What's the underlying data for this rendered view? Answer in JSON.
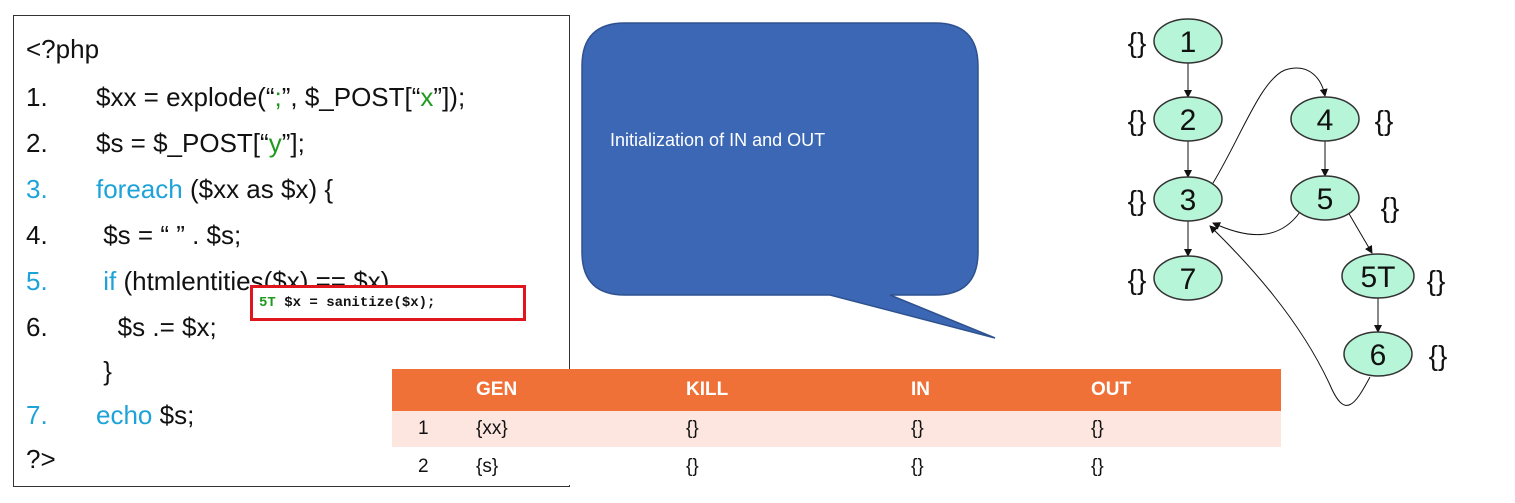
{
  "code": {
    "open_tag": "<?php",
    "lines": [
      {
        "num": "1.",
        "pre": "$xx = explode(“",
        "str": ";",
        "mid": "”, $_POST[“",
        "str2": "x",
        "post": "”]);"
      },
      {
        "num": "2.",
        "pre": "$s = $_POST[“",
        "str": "y",
        "post": "”];"
      },
      {
        "num": "3.",
        "kw": "foreach",
        "rest": " ($xx as $x) {"
      },
      {
        "num": "4.",
        "text": " $s = “ ” . $s;"
      },
      {
        "num": "5.",
        "kw": " if",
        "rest": " (htmlentities($x) == $x)"
      },
      {
        "num": "6.",
        "text": "   $s .= $x;"
      },
      {
        "num": "",
        "text": " }"
      },
      {
        "num": "7.",
        "kw": "echo",
        "rest": " $s;"
      }
    ],
    "close_tag": "?>",
    "patch_id": "5T",
    "patch_code": " $x = sanitize($x);"
  },
  "callout": {
    "text": "Initialization of IN and OUT"
  },
  "graph": {
    "nodes": [
      {
        "id": "1",
        "set": "{}"
      },
      {
        "id": "2",
        "set": "{}"
      },
      {
        "id": "3",
        "set": "{}"
      },
      {
        "id": "7",
        "set": "{}"
      },
      {
        "id": "4",
        "set": "{}"
      },
      {
        "id": "5",
        "set": "{}"
      },
      {
        "id": "5T",
        "set": "{}"
      },
      {
        "id": "6",
        "set": "{}"
      }
    ]
  },
  "table": {
    "headers": [
      "",
      "GEN",
      "KILL",
      "IN",
      "OUT"
    ],
    "rows": [
      [
        "1",
        "{xx}",
        "{}",
        "{}",
        "{}"
      ],
      [
        "2",
        "{s}",
        "{}",
        "{}",
        "{}"
      ]
    ]
  },
  "colors": {
    "node_fill": "#b6f5d8",
    "callout_fill": "#3b67b5",
    "table_header": "#f07138",
    "keyword": "#1ea3d8",
    "string": "#1f9a1f",
    "patch_border": "#e0161c"
  }
}
